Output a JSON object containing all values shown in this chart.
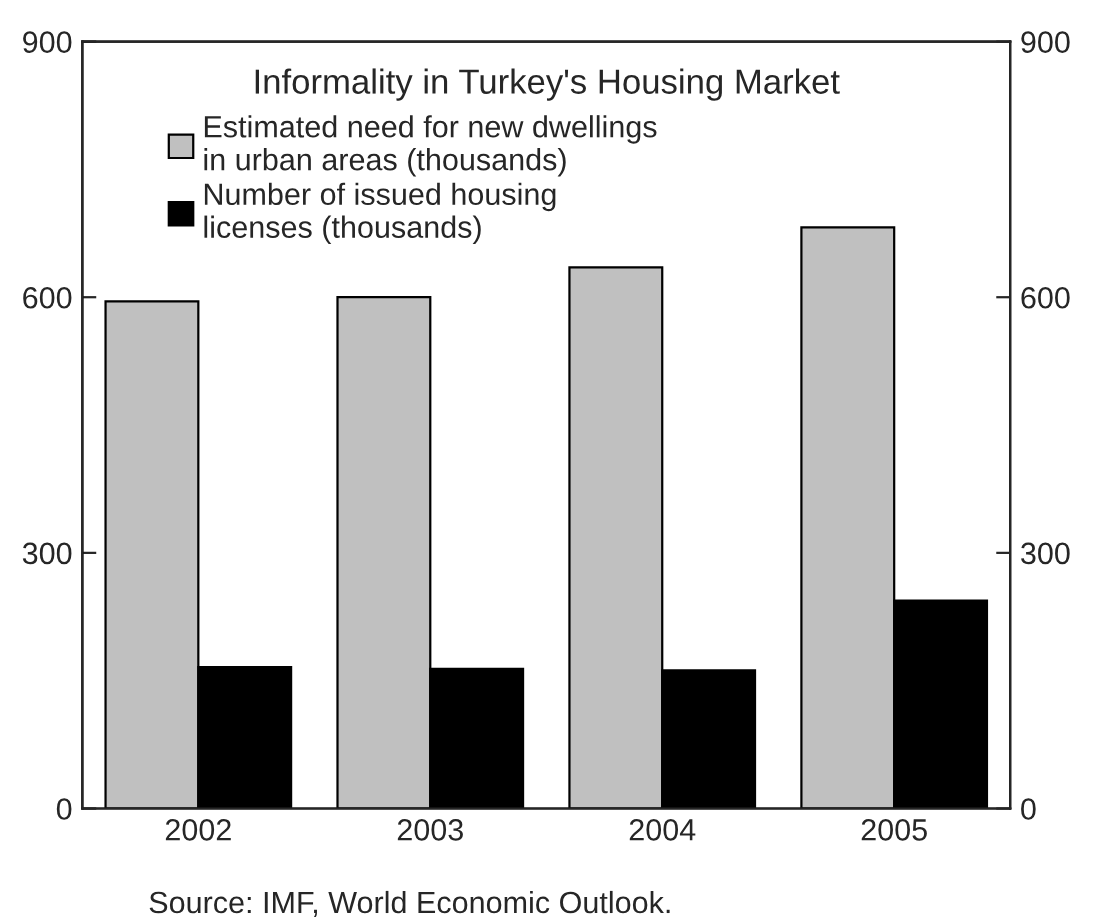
{
  "chart_data": {
    "type": "bar",
    "title": "Informality in Turkey's Housing Market",
    "categories": [
      "2002",
      "2003",
      "2004",
      "2005"
    ],
    "series": [
      {
        "name": "Estimated need for new dwellings\nin urban areas (thousands)",
        "color": "#c0c0c0",
        "values": [
          595,
          600,
          635,
          682
        ]
      },
      {
        "name": "Number of issued housing\nlicenses (thousands)",
        "color": "#000000",
        "values": [
          166,
          164,
          162,
          244
        ]
      }
    ],
    "ylim": [
      0,
      900
    ],
    "yticks": [
      0,
      300,
      600,
      900
    ],
    "y2lim": [
      0,
      900
    ],
    "y2ticks": [
      0,
      300,
      600,
      900
    ],
    "grid": false,
    "legend": "top left",
    "annotations": [
      "Source: IMF, World Economic Outlook."
    ]
  }
}
